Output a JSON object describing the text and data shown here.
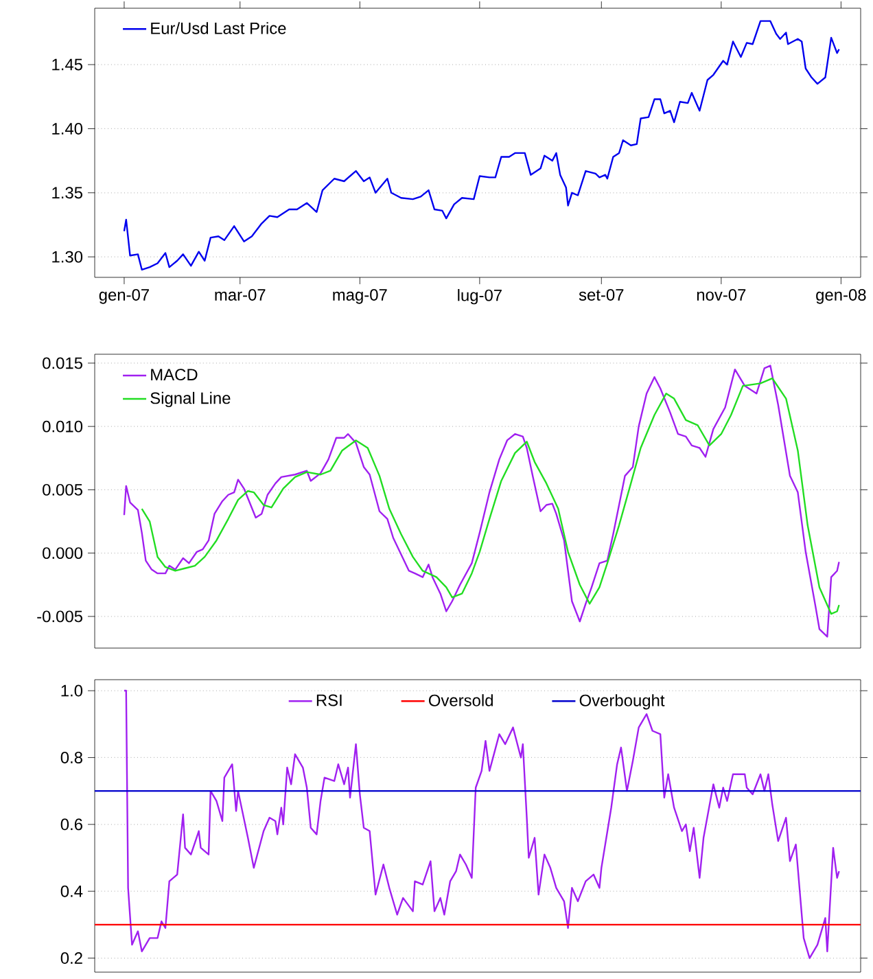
{
  "chart_data": [
    {
      "type": "line",
      "legend": "top left",
      "grid": "y",
      "xlim": [
        "2006-12-17",
        "2008-01-11"
      ],
      "ylim": [
        1.284,
        1.494
      ],
      "xticks": [
        {
          "value": "2007-01-01",
          "label": "gen-07"
        },
        {
          "value": "2007-03-01",
          "label": "mar-07"
        },
        {
          "value": "2007-05-01",
          "label": "mag-07"
        },
        {
          "value": "2007-07-01",
          "label": "lug-07"
        },
        {
          "value": "2007-09-01",
          "label": "set-07"
        },
        {
          "value": "2007-11-01",
          "label": "nov-07"
        },
        {
          "value": "2008-01-01",
          "label": "gen-08"
        }
      ],
      "yticks": [
        {
          "value": 1.3,
          "label": "1.30"
        },
        {
          "value": 1.35,
          "label": "1.35"
        },
        {
          "value": 1.4,
          "label": "1.40"
        },
        {
          "value": 1.45,
          "label": "1.45"
        }
      ],
      "series": [
        {
          "name": "Eur/Usd Last Price",
          "color": "#0000ee",
          "x": [
            "2007-01-01",
            "2007-01-02",
            "2007-01-04",
            "2007-01-08",
            "2007-01-10",
            "2007-01-14",
            "2007-01-18",
            "2007-01-22",
            "2007-01-24",
            "2007-01-28",
            "2007-01-31",
            "2007-02-04",
            "2007-02-08",
            "2007-02-11",
            "2007-02-14",
            "2007-02-18",
            "2007-02-21",
            "2007-02-26",
            "2007-03-03",
            "2007-03-07",
            "2007-03-12",
            "2007-03-16",
            "2007-03-20",
            "2007-03-26",
            "2007-03-30",
            "2007-04-04",
            "2007-04-09",
            "2007-04-12",
            "2007-04-18",
            "2007-04-23",
            "2007-04-26",
            "2007-04-29",
            "2007-05-03",
            "2007-05-06",
            "2007-05-09",
            "2007-05-15",
            "2007-05-17",
            "2007-05-22",
            "2007-05-28",
            "2007-06-01",
            "2007-06-05",
            "2007-06-08",
            "2007-06-12",
            "2007-06-14",
            "2007-06-18",
            "2007-06-22",
            "2007-06-28",
            "2007-07-01",
            "2007-07-06",
            "2007-07-09",
            "2007-07-12",
            "2007-07-16",
            "2007-07-19",
            "2007-07-24",
            "2007-07-27",
            "2007-08-01",
            "2007-08-03",
            "2007-08-07",
            "2007-08-09",
            "2007-08-11",
            "2007-08-14",
            "2007-08-15",
            "2007-08-17",
            "2007-08-20",
            "2007-08-24",
            "2007-08-29",
            "2007-08-31",
            "2007-09-03",
            "2007-09-04",
            "2007-09-07",
            "2007-09-10",
            "2007-09-12",
            "2007-09-16",
            "2007-09-19",
            "2007-09-21",
            "2007-09-25",
            "2007-09-28",
            "2007-10-01",
            "2007-10-03",
            "2007-10-06",
            "2007-10-08",
            "2007-10-11",
            "2007-10-15",
            "2007-10-17",
            "2007-10-21",
            "2007-10-25",
            "2007-10-28",
            "2007-11-02",
            "2007-11-04",
            "2007-11-07",
            "2007-11-11",
            "2007-11-14",
            "2007-11-17",
            "2007-11-21",
            "2007-11-26",
            "2007-11-29",
            "2007-12-01",
            "2007-12-04",
            "2007-12-05",
            "2007-12-10",
            "2007-12-12",
            "2007-12-14",
            "2007-12-17",
            "2007-12-20",
            "2007-12-24",
            "2007-12-27",
            "2007-12-30",
            "2007-12-31"
          ],
          "values": [
            1.32,
            1.329,
            1.301,
            1.302,
            1.29,
            1.292,
            1.295,
            1.303,
            1.292,
            1.297,
            1.302,
            1.293,
            1.304,
            1.297,
            1.315,
            1.316,
            1.313,
            1.324,
            1.312,
            1.316,
            1.326,
            1.332,
            1.331,
            1.337,
            1.337,
            1.342,
            1.335,
            1.352,
            1.361,
            1.359,
            1.363,
            1.367,
            1.359,
            1.362,
            1.35,
            1.361,
            1.35,
            1.346,
            1.345,
            1.347,
            1.352,
            1.337,
            1.336,
            1.33,
            1.341,
            1.346,
            1.345,
            1.363,
            1.362,
            1.362,
            1.378,
            1.378,
            1.381,
            1.381,
            1.364,
            1.369,
            1.379,
            1.375,
            1.381,
            1.364,
            1.354,
            1.34,
            1.35,
            1.348,
            1.367,
            1.365,
            1.362,
            1.364,
            1.361,
            1.378,
            1.381,
            1.391,
            1.387,
            1.388,
            1.408,
            1.409,
            1.423,
            1.423,
            1.412,
            1.414,
            1.405,
            1.421,
            1.42,
            1.428,
            1.414,
            1.438,
            1.442,
            1.453,
            1.45,
            1.468,
            1.456,
            1.467,
            1.466,
            1.484,
            1.484,
            1.474,
            1.47,
            1.475,
            1.466,
            1.47,
            1.468,
            1.447,
            1.44,
            1.435,
            1.44,
            1.471,
            1.459,
            1.462
          ]
        }
      ]
    },
    {
      "type": "line",
      "legend": "top left",
      "grid": "y",
      "tick_labels": "y",
      "xlim": [
        "2006-12-17",
        "2008-01-11"
      ],
      "ylim": [
        -0.0075,
        0.0157
      ],
      "yticks": [
        {
          "value": -0.005,
          "label": "-0.005"
        },
        {
          "value": 0,
          "label": "0.000"
        },
        {
          "value": 0.005,
          "label": "0.005"
        },
        {
          "value": 0.01,
          "label": "0.010"
        },
        {
          "value": 0.015,
          "label": "0.015"
        }
      ],
      "series": [
        {
          "name": "MACD",
          "color": "#a020f0",
          "x": [
            "2007-01-01",
            "2007-01-02",
            "2007-01-04",
            "2007-01-08",
            "2007-01-10",
            "2007-01-12",
            "2007-01-15",
            "2007-01-18",
            "2007-01-22",
            "2007-01-24",
            "2007-01-27",
            "2007-01-31",
            "2007-02-03",
            "2007-02-07",
            "2007-02-10",
            "2007-02-13",
            "2007-02-16",
            "2007-02-20",
            "2007-02-23",
            "2007-02-26",
            "2007-02-28",
            "2007-03-03",
            "2007-03-09",
            "2007-03-12",
            "2007-03-15",
            "2007-03-19",
            "2007-03-22",
            "2007-03-29",
            "2007-04-04",
            "2007-04-06",
            "2007-04-11",
            "2007-04-15",
            "2007-04-19",
            "2007-04-23",
            "2007-04-25",
            "2007-04-29",
            "2007-05-03",
            "2007-05-06",
            "2007-05-11",
            "2007-05-15",
            "2007-05-18",
            "2007-05-22",
            "2007-05-26",
            "2007-05-29",
            "2007-06-02",
            "2007-06-05",
            "2007-06-07",
            "2007-06-11",
            "2007-06-14",
            "2007-06-17",
            "2007-06-21",
            "2007-06-27",
            "2007-07-01",
            "2007-07-06",
            "2007-07-11",
            "2007-07-15",
            "2007-07-19",
            "2007-07-23",
            "2007-07-25",
            "2007-07-28",
            "2007-08-01",
            "2007-08-04",
            "2007-08-07",
            "2007-08-09",
            "2007-08-13",
            "2007-08-17",
            "2007-08-21",
            "2007-08-24",
            "2007-08-27",
            "2007-08-31",
            "2007-09-04",
            "2007-09-07",
            "2007-09-13",
            "2007-09-17",
            "2007-09-20",
            "2007-09-24",
            "2007-09-28",
            "2007-10-01",
            "2007-10-06",
            "2007-10-10",
            "2007-10-14",
            "2007-10-17",
            "2007-10-21",
            "2007-10-24",
            "2007-10-28",
            "2007-11-03",
            "2007-11-08",
            "2007-11-13",
            "2007-11-19",
            "2007-11-23",
            "2007-11-26",
            "2007-11-30",
            "2007-12-06",
            "2007-12-10",
            "2007-12-14",
            "2007-12-19",
            "2007-12-21",
            "2007-12-25",
            "2007-12-27",
            "2007-12-30",
            "2007-12-31"
          ],
          "values": [
            0.003,
            0.0053,
            0.004,
            0.0034,
            0.0016,
            -0.0006,
            -0.0013,
            -0.0016,
            -0.0016,
            -0.001,
            -0.0013,
            -0.0004,
            -0.0008,
            0.0001,
            0.0003,
            0.001,
            0.0031,
            0.0041,
            0.0046,
            0.0048,
            0.0058,
            0.0051,
            0.0028,
            0.0031,
            0.0046,
            0.0055,
            0.006,
            0.0062,
            0.0065,
            0.0057,
            0.0063,
            0.0074,
            0.0091,
            0.0091,
            0.0094,
            0.0087,
            0.0068,
            0.0062,
            0.0033,
            0.0027,
            0.0012,
            -0.0001,
            -0.0014,
            -0.0016,
            -0.0019,
            -0.0009,
            -0.0019,
            -0.0032,
            -0.0046,
            -0.0038,
            -0.0025,
            -0.0008,
            0.0016,
            0.0048,
            0.0074,
            0.0089,
            0.0094,
            0.0092,
            0.0083,
            0.0061,
            0.0033,
            0.0038,
            0.0039,
            0.0031,
            0.001,
            -0.0038,
            -0.0054,
            -0.004,
            -0.0027,
            -0.0008,
            -0.0006,
            0.0015,
            0.0061,
            0.0068,
            0.01,
            0.0126,
            0.0139,
            0.013,
            0.0111,
            0.0094,
            0.0092,
            0.0085,
            0.0083,
            0.0076,
            0.0098,
            0.0115,
            0.0145,
            0.0132,
            0.0126,
            0.0146,
            0.0148,
            0.0117,
            0.0061,
            0.0048,
            0.0001,
            -0.0042,
            -0.006,
            -0.0066,
            -0.0019,
            -0.0014,
            -0.0007
          ]
        },
        {
          "name": "Signal Line",
          "color": "#22dd22",
          "x": [
            "2007-01-10",
            "2007-01-14",
            "2007-01-18",
            "2007-01-22",
            "2007-01-27",
            "2007-02-01",
            "2007-02-06",
            "2007-02-11",
            "2007-02-17",
            "2007-02-23",
            "2007-02-28",
            "2007-03-05",
            "2007-03-08",
            "2007-03-13",
            "2007-03-17",
            "2007-03-23",
            "2007-03-29",
            "2007-04-04",
            "2007-04-11",
            "2007-04-16",
            "2007-04-22",
            "2007-04-29",
            "2007-05-05",
            "2007-05-11",
            "2007-05-16",
            "2007-05-22",
            "2007-05-28",
            "2007-06-02",
            "2007-06-09",
            "2007-06-14",
            "2007-06-17",
            "2007-06-22",
            "2007-06-27",
            "2007-07-01",
            "2007-07-06",
            "2007-07-12",
            "2007-07-19",
            "2007-07-25",
            "2007-07-29",
            "2007-08-04",
            "2007-08-10",
            "2007-08-15",
            "2007-08-21",
            "2007-08-26",
            "2007-08-31",
            "2007-09-04",
            "2007-09-10",
            "2007-09-16",
            "2007-09-21",
            "2007-09-28",
            "2007-10-04",
            "2007-10-08",
            "2007-10-14",
            "2007-10-20",
            "2007-10-26",
            "2007-11-01",
            "2007-11-06",
            "2007-11-12",
            "2007-11-21",
            "2007-11-27",
            "2007-12-04",
            "2007-12-10",
            "2007-12-15",
            "2007-12-21",
            "2007-12-27",
            "2007-12-30",
            "2007-12-31"
          ],
          "values": [
            0.0035,
            0.0025,
            -0.0003,
            -0.0011,
            -0.0014,
            -0.0012,
            -0.001,
            -0.0003,
            0.001,
            0.0027,
            0.0042,
            0.0049,
            0.0048,
            0.0038,
            0.0036,
            0.0051,
            0.006,
            0.0064,
            0.0062,
            0.0065,
            0.0081,
            0.0089,
            0.0083,
            0.0061,
            0.0035,
            0.0015,
            -0.0003,
            -0.0014,
            -0.0019,
            -0.0027,
            -0.0035,
            -0.0032,
            -0.0016,
            0.0001,
            0.0027,
            0.0057,
            0.0079,
            0.0088,
            0.0072,
            0.0055,
            0.0035,
            0.0001,
            -0.0025,
            -0.004,
            -0.0027,
            -0.0008,
            0.0022,
            0.0055,
            0.0083,
            0.0109,
            0.0126,
            0.0122,
            0.0105,
            0.0101,
            0.0085,
            0.0094,
            0.0109,
            0.0132,
            0.0134,
            0.0138,
            0.0122,
            0.0081,
            0.0022,
            -0.0027,
            -0.0048,
            -0.0046,
            -0.0041
          ]
        }
      ]
    },
    {
      "type": "line",
      "legend": "top",
      "grid": "y",
      "tick_labels": "y",
      "xlim": [
        "2006-12-17",
        "2008-01-11"
      ],
      "ylim": [
        0.158,
        1.033
      ],
      "yticks": [
        {
          "value": 0.2,
          "label": "0.2"
        },
        {
          "value": 0.4,
          "label": "0.4"
        },
        {
          "value": 0.6,
          "label": "0.6"
        },
        {
          "value": 0.8,
          "label": "0.8"
        },
        {
          "value": 1.0,
          "label": "1.0"
        }
      ],
      "ref_lines": [
        {
          "axis": "y",
          "value": 0.3,
          "label": "Oversold",
          "color": "#ff0000"
        },
        {
          "axis": "y",
          "value": 0.7,
          "label": "Overbought",
          "color": "#0000cd"
        }
      ],
      "series": [
        {
          "name": "RSI",
          "color": "#a020f0",
          "x": [
            "2007-01-01",
            "2007-01-02",
            "2007-01-03",
            "2007-01-05",
            "2007-01-08",
            "2007-01-10",
            "2007-01-14",
            "2007-01-18",
            "2007-01-20",
            "2007-01-22",
            "2007-01-24",
            "2007-01-28",
            "2007-01-31",
            "2007-02-01",
            "2007-02-04",
            "2007-02-08",
            "2007-02-09",
            "2007-02-13",
            "2007-02-14",
            "2007-02-17",
            "2007-02-20",
            "2007-02-21",
            "2007-02-25",
            "2007-02-27",
            "2007-02-28",
            "2007-03-05",
            "2007-03-08",
            "2007-03-13",
            "2007-03-16",
            "2007-03-19",
            "2007-03-20",
            "2007-03-22",
            "2007-03-23",
            "2007-03-25",
            "2007-03-27",
            "2007-03-29",
            "2007-04-02",
            "2007-04-04",
            "2007-04-06",
            "2007-04-09",
            "2007-04-11",
            "2007-04-13",
            "2007-04-18",
            "2007-04-20",
            "2007-04-23",
            "2007-04-25",
            "2007-04-26",
            "2007-04-29",
            "2007-05-01",
            "2007-05-03",
            "2007-05-06",
            "2007-05-09",
            "2007-05-13",
            "2007-05-16",
            "2007-05-20",
            "2007-05-23",
            "2007-05-28",
            "2007-05-29",
            "2007-06-02",
            "2007-06-06",
            "2007-06-08",
            "2007-06-11",
            "2007-06-13",
            "2007-06-16",
            "2007-06-19",
            "2007-06-21",
            "2007-06-24",
            "2007-06-27",
            "2007-06-29",
            "2007-07-02",
            "2007-07-04",
            "2007-07-06",
            "2007-07-11",
            "2007-07-14",
            "2007-07-18",
            "2007-07-22",
            "2007-07-23",
            "2007-07-25",
            "2007-07-26",
            "2007-07-29",
            "2007-07-31",
            "2007-08-03",
            "2007-08-06",
            "2007-08-09",
            "2007-08-13",
            "2007-08-15",
            "2007-08-17",
            "2007-08-20",
            "2007-08-24",
            "2007-08-28",
            "2007-08-31",
            "2007-09-01",
            "2007-09-06",
            "2007-09-09",
            "2007-09-11",
            "2007-09-14",
            "2007-09-17",
            "2007-09-20",
            "2007-09-24",
            "2007-09-27",
            "2007-10-01",
            "2007-10-03",
            "2007-10-05",
            "2007-10-08",
            "2007-10-12",
            "2007-10-14",
            "2007-10-16",
            "2007-10-18",
            "2007-10-21",
            "2007-10-23",
            "2007-10-28",
            "2007-10-31",
            "2007-11-02",
            "2007-11-04",
            "2007-11-07",
            "2007-11-13",
            "2007-11-14",
            "2007-11-17",
            "2007-11-21",
            "2007-11-23",
            "2007-11-25",
            "2007-11-27",
            "2007-11-30",
            "2007-12-04",
            "2007-12-06",
            "2007-12-09",
            "2007-12-13",
            "2007-12-16",
            "2007-12-20",
            "2007-12-24",
            "2007-12-25",
            "2007-12-28",
            "2007-12-30",
            "2007-12-31"
          ],
          "values": [
            1.0,
            1.0,
            0.41,
            0.24,
            0.28,
            0.22,
            0.26,
            0.26,
            0.31,
            0.29,
            0.43,
            0.45,
            0.63,
            0.53,
            0.51,
            0.58,
            0.53,
            0.51,
            0.7,
            0.67,
            0.61,
            0.74,
            0.78,
            0.64,
            0.7,
            0.56,
            0.47,
            0.58,
            0.62,
            0.61,
            0.57,
            0.65,
            0.6,
            0.77,
            0.72,
            0.81,
            0.77,
            0.71,
            0.59,
            0.57,
            0.67,
            0.74,
            0.73,
            0.78,
            0.72,
            0.77,
            0.68,
            0.84,
            0.69,
            0.59,
            0.58,
            0.39,
            0.48,
            0.41,
            0.33,
            0.38,
            0.34,
            0.43,
            0.42,
            0.49,
            0.34,
            0.38,
            0.33,
            0.43,
            0.46,
            0.51,
            0.48,
            0.44,
            0.71,
            0.76,
            0.85,
            0.76,
            0.87,
            0.84,
            0.89,
            0.8,
            0.84,
            0.62,
            0.5,
            0.56,
            0.39,
            0.51,
            0.47,
            0.41,
            0.37,
            0.29,
            0.41,
            0.37,
            0.43,
            0.45,
            0.41,
            0.47,
            0.65,
            0.78,
            0.83,
            0.7,
            0.79,
            0.89,
            0.93,
            0.88,
            0.87,
            0.68,
            0.75,
            0.65,
            0.58,
            0.6,
            0.52,
            0.59,
            0.44,
            0.56,
            0.72,
            0.65,
            0.71,
            0.67,
            0.75,
            0.75,
            0.71,
            0.69,
            0.75,
            0.7,
            0.75,
            0.66,
            0.55,
            0.62,
            0.49,
            0.54,
            0.26,
            0.2,
            0.24,
            0.32,
            0.22,
            0.53,
            0.44,
            0.46
          ]
        }
      ]
    }
  ]
}
